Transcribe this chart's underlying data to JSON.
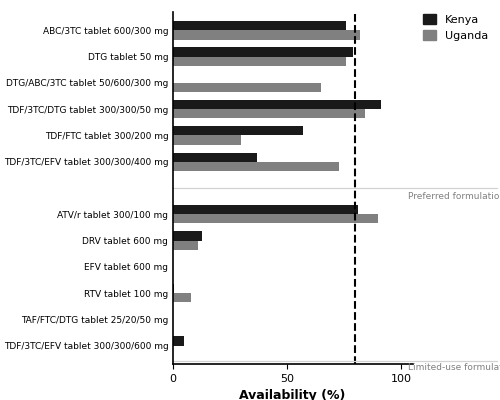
{
  "categories_preferred": [
    "ABC/3TC tablet 600/300 mg",
    "DTG tablet 50 mg",
    "DTG/ABC/3TC tablet 50/600/300 mg",
    "TDF/3TC/DTG tablet 300/300/50 mg",
    "TDF/FTC tablet 300/200 mg",
    "TDF/3TC/EFV tablet 300/300/400 mg"
  ],
  "categories_limited": [
    "ATV/r tablet 300/100 mg",
    "DRV tablet 600 mg",
    "EFV tablet 600 mg",
    "RTV tablet 100 mg",
    "TAF/FTC/DTG tablet 25/20/50 mg",
    "TDF/3TC/EFV tablet 300/300/600 mg"
  ],
  "kenya_preferred": [
    76,
    79,
    0,
    91,
    57,
    37
  ],
  "uganda_preferred": [
    82,
    76,
    65,
    84,
    30,
    73
  ],
  "kenya_limited": [
    81,
    13,
    0,
    0.5,
    0,
    5
  ],
  "uganda_limited": [
    90,
    11,
    0,
    8,
    0,
    0
  ],
  "kenya_color": "#1a1a1a",
  "uganda_color": "#808080",
  "dashed_line_x": 80,
  "xlabel": "Availability (%)",
  "preferred_label": "Preferred formulations",
  "limited_label": "Limited-use formulations",
  "legend_kenya": "Kenya",
  "legend_uganda": "Uganda",
  "xlim": [
    0,
    105
  ],
  "xticks": [
    0,
    50,
    100
  ]
}
